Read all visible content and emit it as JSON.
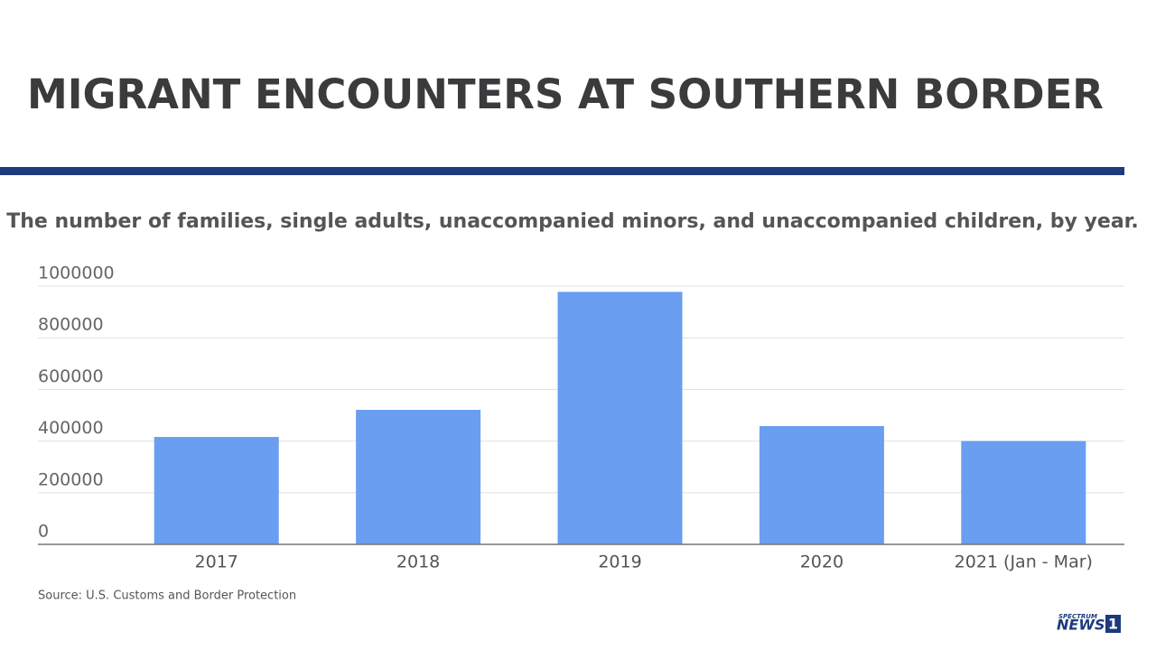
{
  "chart_data": {
    "type": "bar",
    "title": "MIGRANT ENCOUNTERS AT SOUTHERN BORDER",
    "subtitle": "The number of families, single adults, unaccompanied minors, and unaccompanied children, by year.",
    "categories": [
      "2017",
      "2018",
      "2019",
      "2020",
      "2021 (Jan - Mar)"
    ],
    "values": [
      416000,
      521000,
      978000,
      458000,
      400000
    ],
    "color": "#6a9ef0",
    "ylim": [
      0,
      1000000
    ],
    "yticks": [
      0,
      200000,
      400000,
      600000,
      800000,
      1000000
    ],
    "grid": true,
    "source": "Source: U.S. Customs and Border Protection"
  },
  "logo": {
    "top": "SPECTRUM",
    "main": "NEWS",
    "number": "1"
  }
}
